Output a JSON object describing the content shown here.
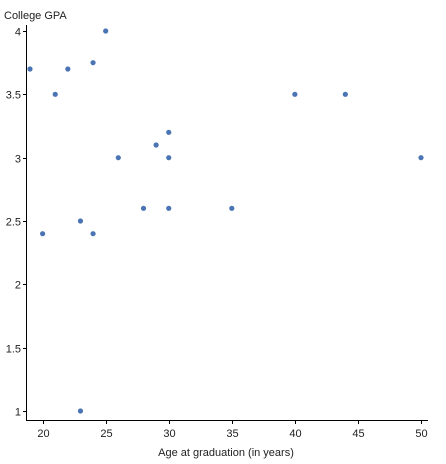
{
  "chart_data": {
    "type": "scatter",
    "title": "",
    "xlabel": "Age at graduation (in years)",
    "ylabel": "College GPA",
    "xlim": [
      19,
      50
    ],
    "ylim": [
      1,
      4
    ],
    "xticks": [
      20,
      25,
      30,
      35,
      40,
      45,
      50
    ],
    "yticks": [
      1,
      1.5,
      2,
      2.5,
      3,
      3.5,
      4
    ],
    "grid": false,
    "marker_color": "#4a74b4",
    "points": [
      {
        "x": 19,
        "y": 3.7
      },
      {
        "x": 20,
        "y": 2.4
      },
      {
        "x": 21,
        "y": 3.5
      },
      {
        "x": 22,
        "y": 3.7
      },
      {
        "x": 23,
        "y": 2.5
      },
      {
        "x": 23,
        "y": 1.0
      },
      {
        "x": 24,
        "y": 3.75
      },
      {
        "x": 24,
        "y": 2.4
      },
      {
        "x": 25,
        "y": 4.0
      },
      {
        "x": 26,
        "y": 3.0
      },
      {
        "x": 28,
        "y": 2.6
      },
      {
        "x": 29,
        "y": 3.1
      },
      {
        "x": 30,
        "y": 3.2
      },
      {
        "x": 30,
        "y": 3.0
      },
      {
        "x": 30,
        "y": 2.6
      },
      {
        "x": 35,
        "y": 2.6
      },
      {
        "x": 40,
        "y": 3.5
      },
      {
        "x": 44,
        "y": 3.5
      },
      {
        "x": 50,
        "y": 3.0
      }
    ]
  }
}
